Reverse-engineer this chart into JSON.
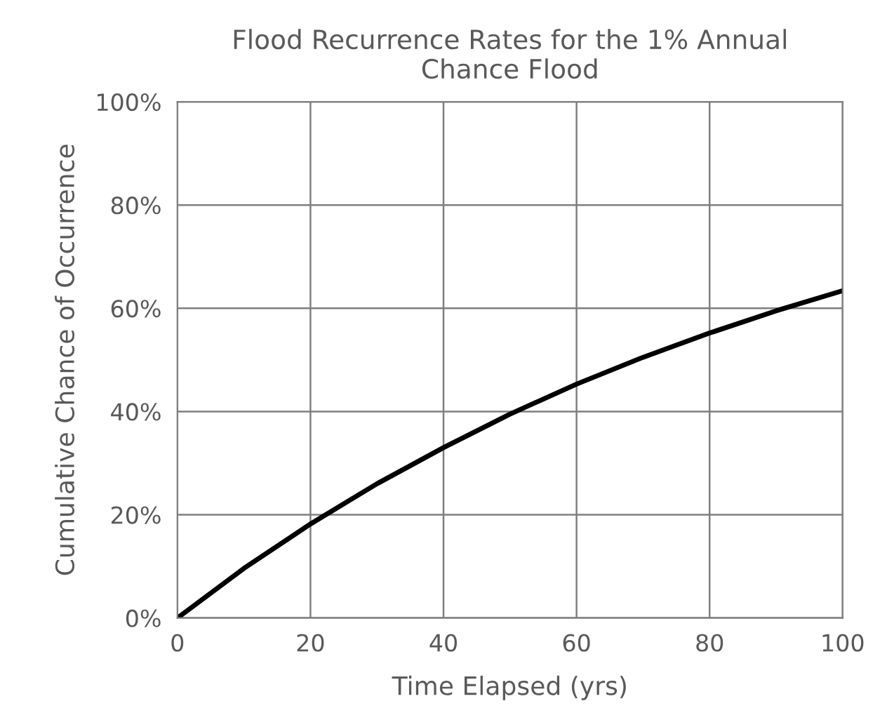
{
  "chart_data": {
    "type": "line",
    "title": "Flood Recurrence Rates for the 1% Annual\nChance Flood",
    "xlabel": "Time Elapsed (yrs)",
    "ylabel": "Cumulative Chance of Occurrence",
    "x": [
      0,
      10,
      20,
      30,
      40,
      50,
      60,
      70,
      80,
      90,
      100
    ],
    "series": [
      {
        "color": "#000000",
        "values": [
          0,
          9.6,
          18.2,
          26,
          33,
          39.5,
          45.3,
          50.5,
          55.2,
          59.5,
          63.4
        ]
      }
    ],
    "xlim": [
      0,
      100
    ],
    "xticks": [
      0,
      20,
      40,
      60,
      80,
      100
    ],
    "ylim": [
      0,
      100
    ],
    "yticks": [
      {
        "value": 0,
        "label": "0%"
      },
      {
        "value": 20,
        "label": "20%"
      },
      {
        "value": 40,
        "label": "40%"
      },
      {
        "value": 60,
        "label": "60%"
      },
      {
        "value": 80,
        "label": "80%"
      },
      {
        "value": 100,
        "label": "100%"
      }
    ],
    "grid": true,
    "marker": "none",
    "line_style": "solid"
  }
}
